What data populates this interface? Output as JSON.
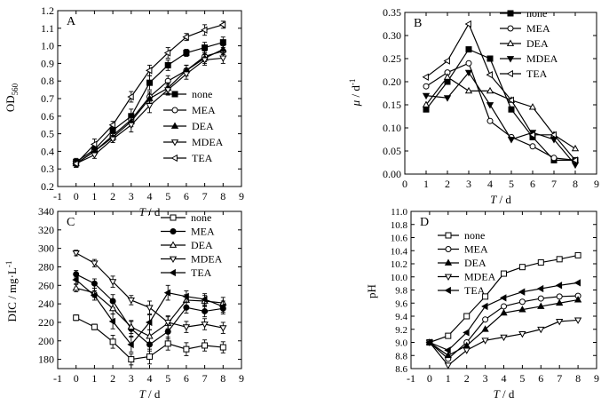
{
  "chart_data": [
    {
      "panel": "A",
      "type": "line",
      "ylabel_main": "OD",
      "ylabel_sub": "560",
      "xlabel_main": "T",
      "xlabel_unit": " / d",
      "xlim": [
        -1,
        9
      ],
      "ylim": [
        0.2,
        1.2
      ],
      "xticks": [
        -1,
        0,
        1,
        2,
        3,
        4,
        5,
        6,
        7,
        8,
        9
      ],
      "yticks": [
        0.2,
        0.3,
        0.4,
        0.5,
        0.6,
        0.7,
        0.8,
        0.9,
        1.0,
        1.1,
        1.2
      ],
      "xtick_labels": [
        "-1",
        "0",
        "1",
        "2",
        "3",
        "4",
        "5",
        "6",
        "7",
        "8",
        "9"
      ],
      "ytick_labels": [
        "0.2",
        "0.3",
        "0.4",
        "0.5",
        "0.6",
        "0.7",
        "0.8",
        "0.9",
        "1.0",
        "1.1",
        "1.2"
      ],
      "x": [
        0,
        1,
        2,
        3,
        4,
        5,
        6,
        7,
        8
      ],
      "series": [
        {
          "name": "none",
          "marker": "square-filled",
          "values": [
            0.34,
            0.41,
            0.52,
            0.6,
            0.79,
            0.89,
            0.96,
            0.99,
            1.02
          ],
          "err": [
            0.02,
            0.02,
            0.02,
            0.04,
            0.04,
            0.03,
            0.02,
            0.03,
            0.03
          ]
        },
        {
          "name": "MEA",
          "marker": "circle-open",
          "values": [
            0.33,
            0.4,
            0.49,
            0.58,
            0.71,
            0.8,
            0.86,
            0.94,
            0.97
          ],
          "err": [
            0.02,
            0.02,
            0.02,
            0.03,
            0.03,
            0.03,
            0.03,
            0.03,
            0.03
          ]
        },
        {
          "name": "DEA",
          "marker": "triangle-up-filled",
          "values": [
            0.33,
            0.4,
            0.48,
            0.57,
            0.7,
            0.76,
            0.86,
            0.93,
            0.98
          ],
          "err": [
            0.02,
            0.02,
            0.02,
            0.03,
            0.03,
            0.03,
            0.03,
            0.03,
            0.03
          ]
        },
        {
          "name": "MDEA",
          "marker": "triangle-down-open",
          "values": [
            0.33,
            0.38,
            0.47,
            0.55,
            0.66,
            0.75,
            0.84,
            0.92,
            0.93
          ],
          "err": [
            0.02,
            0.02,
            0.02,
            0.04,
            0.04,
            0.03,
            0.03,
            0.03,
            0.03
          ]
        },
        {
          "name": "TEA",
          "marker": "triangle-left-open",
          "values": [
            0.33,
            0.44,
            0.55,
            0.71,
            0.86,
            0.96,
            1.05,
            1.09,
            1.12
          ],
          "err": [
            0.02,
            0.03,
            0.02,
            0.03,
            0.03,
            0.03,
            0.02,
            0.03,
            0.02
          ]
        }
      ]
    },
    {
      "panel": "B",
      "type": "line",
      "ylabel_main": "μ",
      "ylabel_unit": " / d",
      "ylabel_sup": "-1",
      "xlabel_main": "T",
      "xlabel_unit": " / d",
      "xlim": [
        0,
        9
      ],
      "ylim": [
        0,
        0.35
      ],
      "xticks": [
        0,
        1,
        2,
        3,
        4,
        5,
        6,
        7,
        8,
        9
      ],
      "yticks": [
        0,
        0.05,
        0.1,
        0.15,
        0.2,
        0.25,
        0.3,
        0.35
      ],
      "xtick_labels": [
        "0",
        "1",
        "2",
        "3",
        "4",
        "5",
        "6",
        "7",
        "8",
        "9"
      ],
      "ytick_labels": [
        "0.00",
        "0.05",
        "0.10",
        "0.15",
        "0.20",
        "0.25",
        "0.30",
        "0.35"
      ],
      "x": [
        1,
        2,
        3,
        4,
        5,
        6,
        7,
        8
      ],
      "series": [
        {
          "name": "none",
          "marker": "square-filled",
          "values": [
            0.14,
            0.2,
            0.27,
            0.25,
            0.14,
            0.08,
            0.03,
            0.03
          ]
        },
        {
          "name": "MEA",
          "marker": "circle-open",
          "values": [
            0.19,
            0.22,
            0.24,
            0.115,
            0.08,
            0.06,
            0.035,
            0.03
          ]
        },
        {
          "name": "DEA",
          "marker": "triangle-up-open",
          "values": [
            0.15,
            0.21,
            0.18,
            0.18,
            0.16,
            0.145,
            0.085,
            0.055
          ]
        },
        {
          "name": "MDEA",
          "marker": "triangle-down-filled",
          "values": [
            0.17,
            0.165,
            0.22,
            0.15,
            0.075,
            0.09,
            0.075,
            0.02
          ]
        },
        {
          "name": "TEA",
          "marker": "triangle-left-open",
          "values": [
            0.21,
            0.245,
            0.325,
            0.215,
            0.16,
            0.085,
            0.085,
            0.03
          ]
        }
      ]
    },
    {
      "panel": "C",
      "type": "line",
      "ylabel_main": "DIC / mg·L",
      "ylabel_sup": "-1",
      "xlabel_main": "T",
      "xlabel_unit": " / d",
      "xlim": [
        -1,
        9
      ],
      "ylim": [
        170,
        340
      ],
      "xticks": [
        -1,
        0,
        1,
        2,
        3,
        4,
        5,
        6,
        7,
        8,
        9
      ],
      "yticks": [
        180,
        200,
        220,
        240,
        260,
        280,
        300,
        320,
        340
      ],
      "xtick_labels": [
        "-1",
        "0",
        "1",
        "2",
        "3",
        "4",
        "5",
        "6",
        "7",
        "8",
        "9"
      ],
      "ytick_labels": [
        "180",
        "200",
        "220",
        "240",
        "260",
        "280",
        "300",
        "320",
        "340"
      ],
      "x": [
        0,
        1,
        2,
        3,
        4,
        5,
        6,
        7,
        8
      ],
      "series": [
        {
          "name": "none",
          "marker": "square-open",
          "values": [
            225,
            215,
            199,
            180,
            183,
            197,
            191,
            195,
            193
          ],
          "err": [
            3,
            3,
            7,
            6,
            8,
            7,
            7,
            6,
            6
          ]
        },
        {
          "name": "MEA",
          "marker": "circle-filled",
          "values": [
            272,
            262,
            243,
            213,
            196,
            210,
            236,
            232,
            235
          ],
          "err": [
            4,
            5,
            7,
            8,
            7,
            8,
            6,
            6,
            6
          ]
        },
        {
          "name": "DEA",
          "marker": "triangle-up-open",
          "values": [
            257,
            252,
            235,
            215,
            205,
            219,
            244,
            243,
            241
          ],
          "err": [
            4,
            5,
            6,
            7,
            7,
            7,
            6,
            6,
            6
          ]
        },
        {
          "name": "MDEA",
          "marker": "triangle-down-open",
          "values": [
            295,
            284,
            264,
            244,
            236,
            220,
            215,
            218,
            214
          ],
          "err": [
            3,
            4,
            6,
            5,
            7,
            7,
            6,
            6,
            6
          ]
        },
        {
          "name": "TEA",
          "marker": "triangle-left-filled",
          "values": [
            266,
            249,
            221,
            196,
            220,
            252,
            248,
            245,
            237
          ],
          "err": [
            4,
            5,
            8,
            8,
            8,
            8,
            6,
            6,
            6
          ]
        }
      ]
    },
    {
      "panel": "D",
      "type": "line",
      "ylabel_main": "pH",
      "xlabel_main": "T",
      "xlabel_unit": " / d",
      "xlim": [
        -1,
        9
      ],
      "ylim": [
        8.6,
        11.0
      ],
      "xticks": [
        -1,
        0,
        1,
        2,
        3,
        4,
        5,
        6,
        7,
        8,
        9
      ],
      "yticks": [
        8.6,
        8.8,
        9.0,
        9.2,
        9.4,
        9.6,
        9.8,
        10.0,
        10.2,
        10.4,
        10.6,
        10.8,
        11.0
      ],
      "xtick_labels": [
        "-1",
        "0",
        "1",
        "2",
        "3",
        "4",
        "5",
        "6",
        "7",
        "8",
        "9"
      ],
      "ytick_labels": [
        "8.6",
        "8.8",
        "9.0",
        "9.2",
        "9.4",
        "9.6",
        "9.8",
        "10.0",
        "10.2",
        "10.4",
        "10.6",
        "10.8",
        "11.0"
      ],
      "x": [
        0,
        1,
        2,
        3,
        4,
        5,
        6,
        7,
        8
      ],
      "series": [
        {
          "name": "none",
          "marker": "square-open",
          "values": [
            9.0,
            9.1,
            9.4,
            9.7,
            10.05,
            10.15,
            10.22,
            10.27,
            10.33
          ]
        },
        {
          "name": "MEA",
          "marker": "circle-open",
          "values": [
            9.0,
            8.75,
            9.0,
            9.35,
            9.55,
            9.62,
            9.67,
            9.7,
            9.71
          ]
        },
        {
          "name": "DEA",
          "marker": "triangle-up-filled",
          "values": [
            9.0,
            8.8,
            8.95,
            9.2,
            9.45,
            9.5,
            9.55,
            9.6,
            9.65
          ]
        },
        {
          "name": "MDEA",
          "marker": "triangle-down-open",
          "values": [
            9.0,
            8.65,
            8.88,
            9.03,
            9.08,
            9.13,
            9.2,
            9.32,
            9.34
          ]
        },
        {
          "name": "TEA",
          "marker": "triangle-left-filled",
          "values": [
            9.0,
            8.88,
            9.15,
            9.55,
            9.68,
            9.77,
            9.82,
            9.87,
            9.91
          ]
        }
      ]
    }
  ]
}
